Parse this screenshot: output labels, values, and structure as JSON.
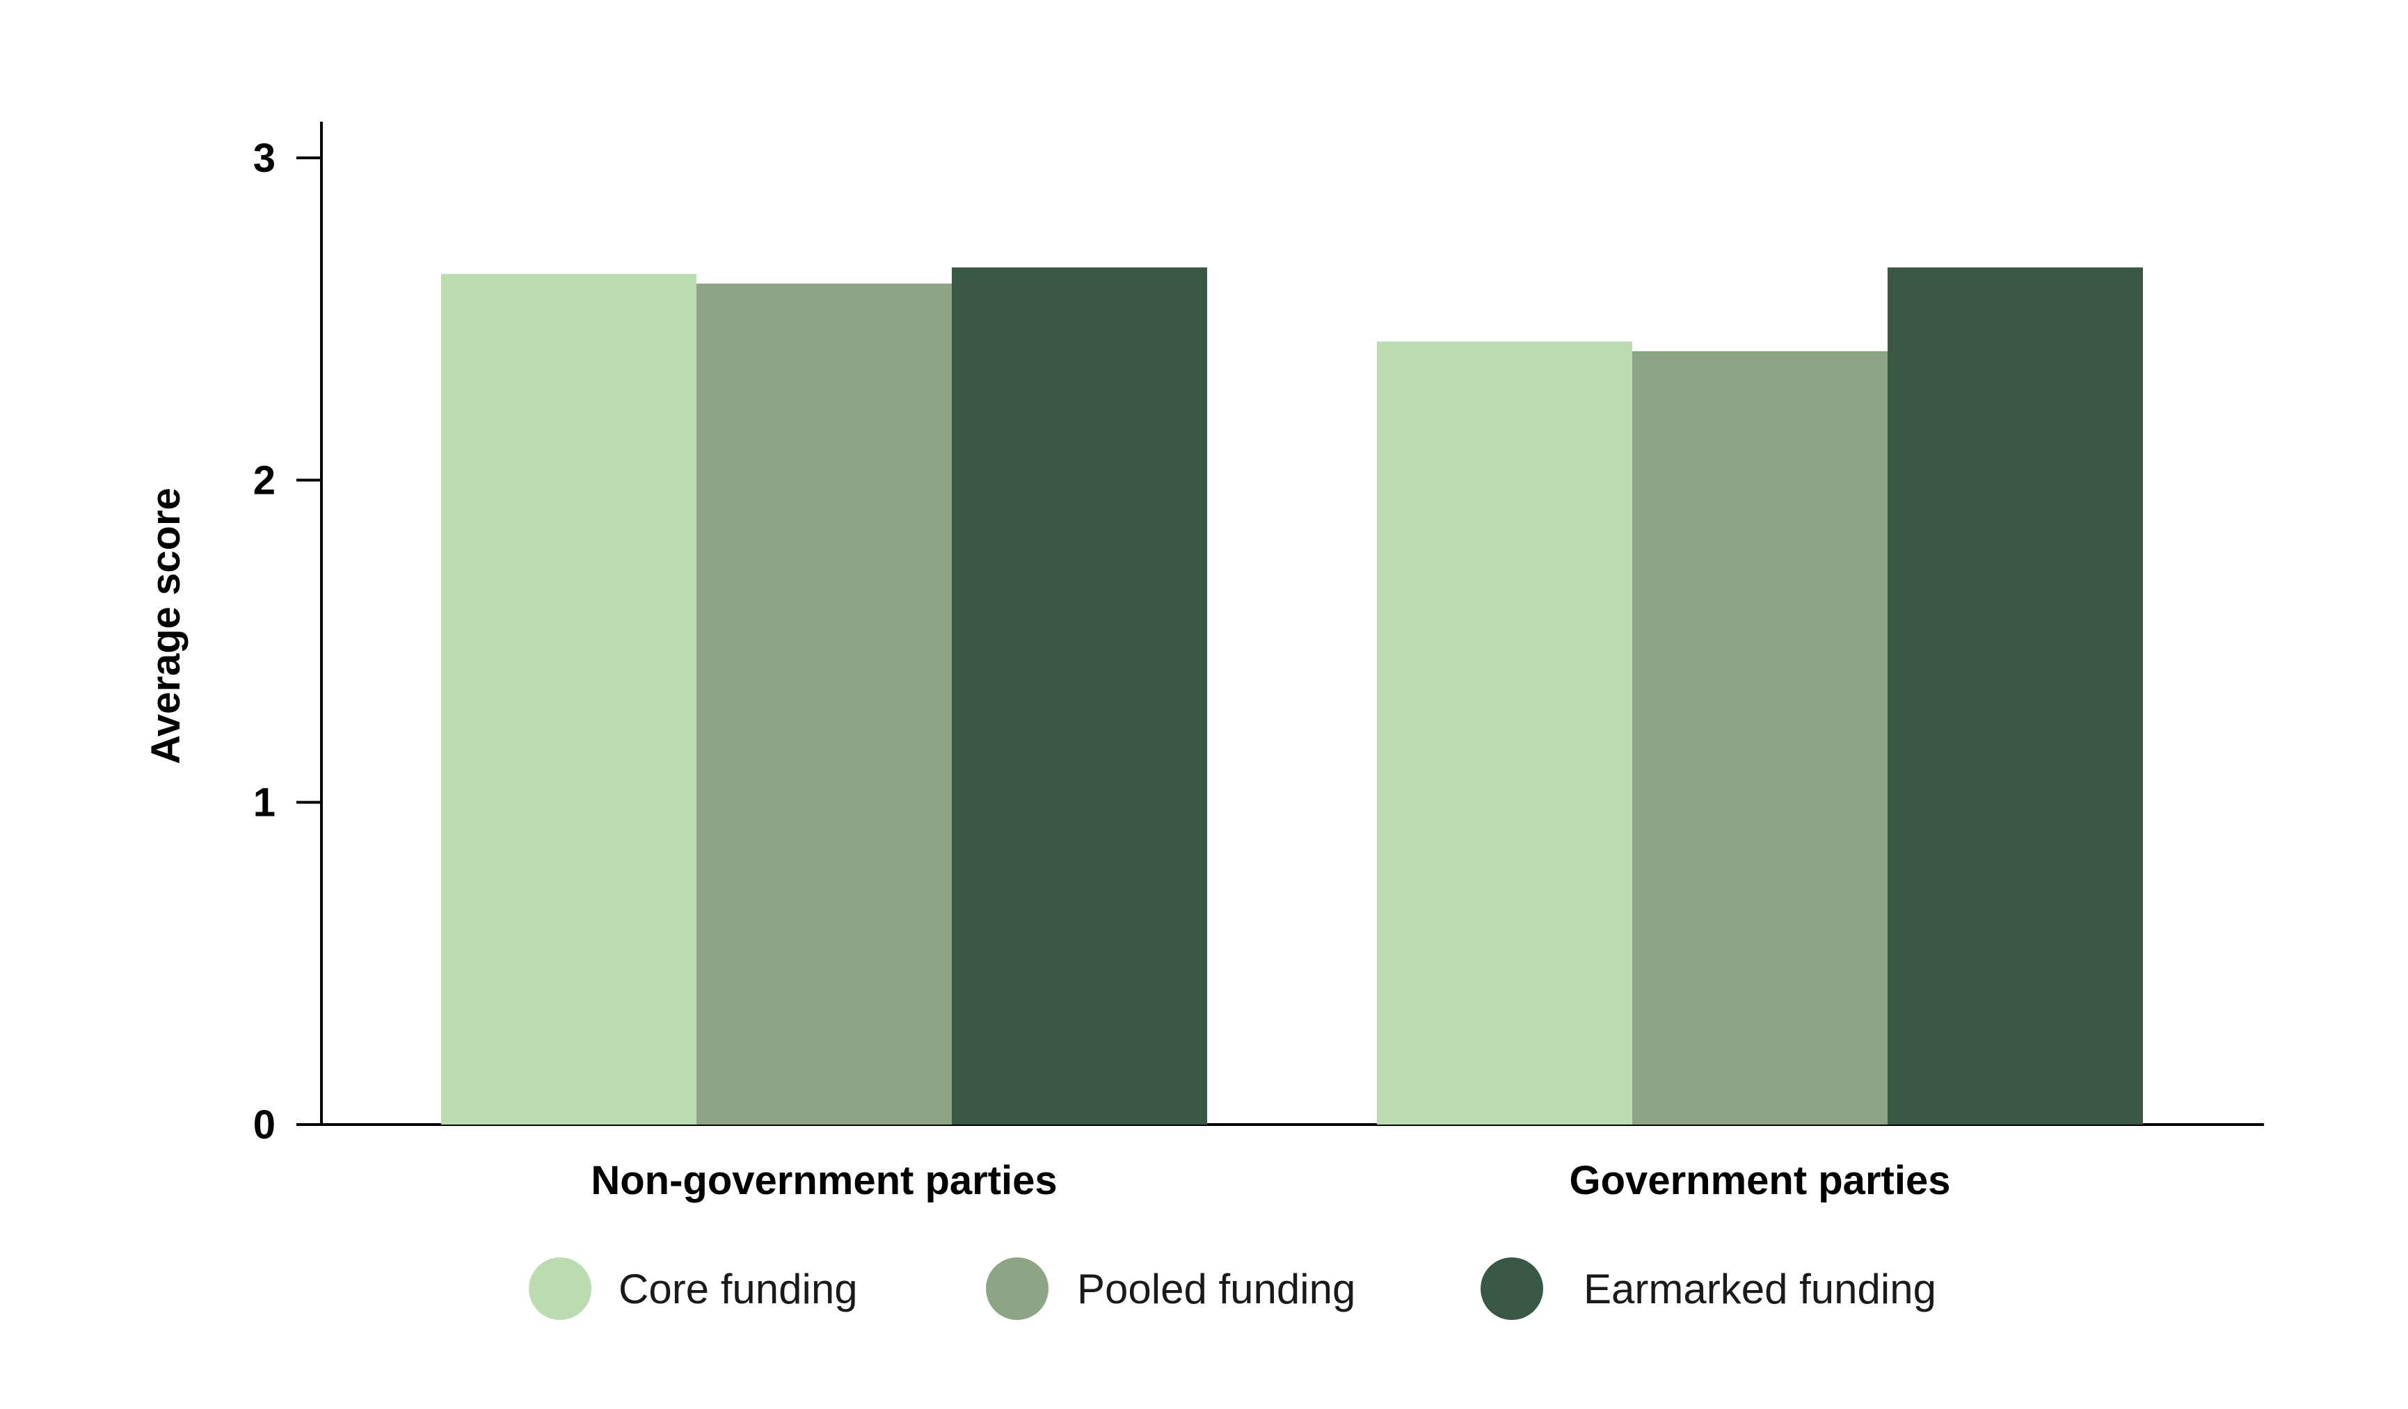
{
  "chart_data": {
    "type": "bar",
    "title": "",
    "xlabel": "",
    "ylabel": "Average score",
    "ylim": [
      0,
      3
    ],
    "yticks": [
      0,
      1,
      2,
      3
    ],
    "grid": false,
    "legend_position": "bottom",
    "categories": [
      "Non-government parties",
      "Government parties"
    ],
    "series": [
      {
        "name": "Core funding",
        "color": "#bbdbb0",
        "values": [
          2.64,
          2.43
        ]
      },
      {
        "name": "Pooled funding",
        "color": "#8ca584",
        "values": [
          2.61,
          2.4
        ]
      },
      {
        "name": "Earmarked funding",
        "color": "#395745",
        "values": [
          2.66,
          2.66
        ]
      }
    ]
  }
}
